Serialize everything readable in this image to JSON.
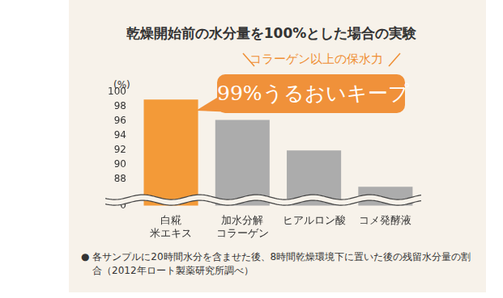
{
  "chart_data": {
    "type": "bar",
    "title": "乾燥開始前の水分量を100%とした場合の実験",
    "annotations": [
      "コラーゲン以上の保水力",
      "99%うるおいキープ"
    ],
    "y_label": "(%)",
    "categories": [
      "白糀\n米エキス",
      "加水分解\nコラーゲン",
      "ヒアルロン酸",
      "コメ発酵液"
    ],
    "values": [
      99,
      96.2,
      92,
      87
    ],
    "colors": [
      "#f39a38",
      "#acacac",
      "#acacac",
      "#acacac"
    ],
    "ylim": [
      0,
      100
    ],
    "yticks": [
      0,
      88,
      90,
      92,
      94,
      96,
      98,
      100
    ],
    "grid": false,
    "footnote": "● 各サンプルに20時間水分を含ませた後、8時間乾燥環境下に置いた後の残留水分量の割合（2012年ロート製薬研究所調べ）"
  }
}
